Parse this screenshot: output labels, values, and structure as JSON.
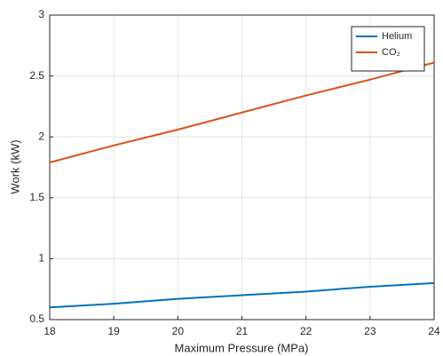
{
  "chart_data": {
    "type": "line",
    "x_label": "Maximum Pressure (MPa)",
    "y_label": "Work (kW)",
    "x": [
      18,
      19,
      20,
      21,
      22,
      23,
      24
    ],
    "series": [
      {
        "name": "Helium",
        "color": "#0072bd",
        "values": [
          0.6,
          0.63,
          0.67,
          0.7,
          0.73,
          0.77,
          0.8
        ]
      },
      {
        "name": "CO₂",
        "color": "#d95319",
        "values": [
          1.79,
          1.93,
          2.06,
          2.2,
          2.34,
          2.47,
          2.61
        ]
      }
    ],
    "xlim": [
      18,
      24
    ],
    "xticks": [
      18,
      19,
      20,
      21,
      22,
      23,
      24
    ],
    "ylim": [
      0.5,
      3
    ],
    "yticks": [
      0.5,
      1,
      1.5,
      2,
      2.5,
      3
    ],
    "grid": true,
    "legend": "top-right"
  }
}
